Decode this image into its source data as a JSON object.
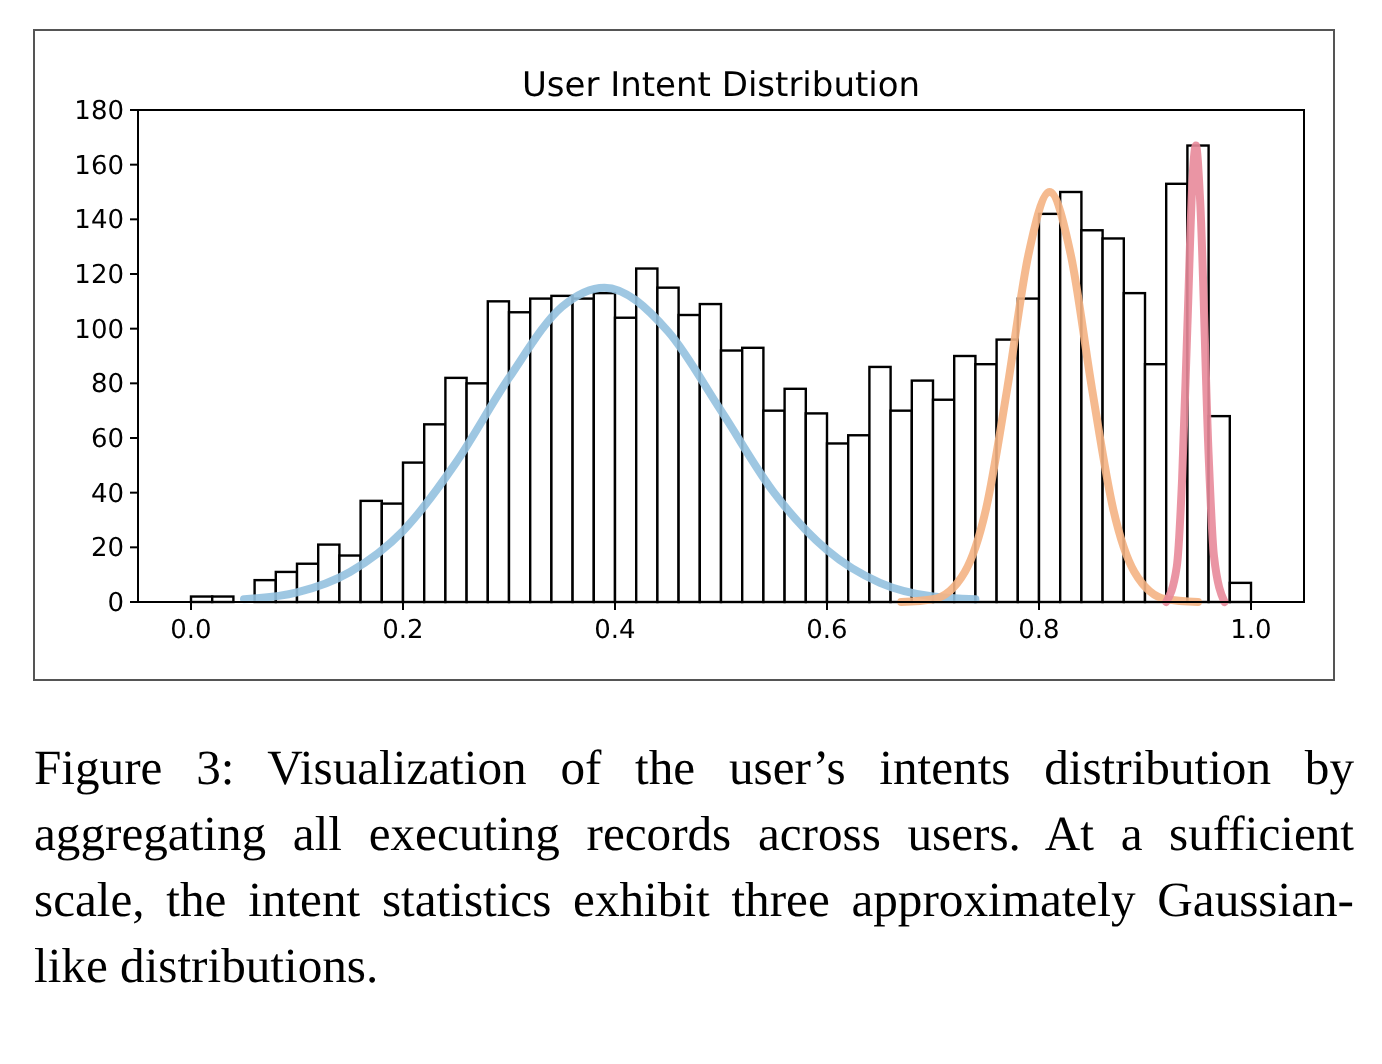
{
  "chart_data": {
    "type": "histogram",
    "title": "User Intent Distribution",
    "bins": [
      0,
      0.02,
      0.04,
      0.06,
      0.08,
      0.1,
      0.12,
      0.14,
      0.16,
      0.18,
      0.2,
      0.22,
      0.24,
      0.26,
      0.28,
      0.3,
      0.32,
      0.34,
      0.36,
      0.38,
      0.4,
      0.42,
      0.44,
      0.46,
      0.48,
      0.5,
      0.52,
      0.54,
      0.56,
      0.58,
      0.6,
      0.62,
      0.64,
      0.66,
      0.68,
      0.7,
      0.72,
      0.74,
      0.76,
      0.78,
      0.8,
      0.82,
      0.84,
      0.86,
      0.88,
      0.9,
      0.92,
      0.94,
      0.96,
      0.98,
      1.0
    ],
    "values": [
      2,
      2,
      null,
      8,
      11,
      14,
      21,
      17,
      37,
      36,
      51,
      65,
      82,
      80,
      110,
      106,
      111,
      112,
      111,
      113,
      104,
      122,
      115,
      105,
      109,
      92,
      93,
      70,
      78,
      69,
      58,
      61,
      86,
      70,
      81,
      74,
      90,
      87,
      96,
      111,
      142,
      150,
      136,
      133,
      113,
      87,
      153,
      167,
      68,
      7
    ],
    "color": "#ffffff",
    "series": [
      {
        "type": "line",
        "color": "#93c1df",
        "x": [
          0.05,
          0.1,
          0.15,
          0.2,
          0.25,
          0.3,
          0.35,
          0.39,
          0.45,
          0.5,
          0.55,
          0.6,
          0.65,
          0.7,
          0.74
        ],
        "values": [
          1,
          3.5,
          11,
          26,
          51,
          82,
          108,
          115,
          99,
          70,
          40,
          19,
          7,
          2,
          1
        ]
      },
      {
        "type": "line",
        "color": "#f4b283",
        "x": [
          0.67,
          0.7,
          0.73,
          0.75,
          0.77,
          0.79,
          0.81,
          0.83,
          0.85,
          0.87,
          0.89,
          0.92,
          0.95
        ],
        "values": [
          0,
          1,
          11,
          34,
          78,
          127,
          150,
          127,
          78,
          34,
          11,
          1,
          0
        ]
      },
      {
        "type": "line",
        "color": "#e8899a",
        "x": [
          0.92,
          0.93,
          0.935,
          0.94,
          0.945,
          0.948,
          0.952,
          0.96,
          0.965,
          0.975
        ],
        "values": [
          0,
          13,
          45,
          101,
          156,
          167,
          147,
          54,
          17,
          0
        ]
      }
    ],
    "xlim": [
      -0.05,
      1.05
    ],
    "xticks": [
      {
        "value": 0,
        "label": "0.0"
      },
      {
        "value": 0.2,
        "label": "0.2"
      },
      {
        "value": 0.4,
        "label": "0.4"
      },
      {
        "value": 0.6,
        "label": "0.6"
      },
      {
        "value": 0.8,
        "label": "0.8"
      },
      {
        "value": 1,
        "label": "1.0"
      }
    ],
    "ylim": [
      0,
      180
    ],
    "yticks": [
      0,
      20,
      40,
      60,
      80,
      100,
      120,
      140,
      160,
      180
    ],
    "grid": false,
    "annotations": [
      "Figure 3: Visualization of the user’s intents distribution by aggregating all executing records across users. At a sufficient scale, the intent statistics exhibit three approximately Gaussian-like distributions."
    ]
  }
}
